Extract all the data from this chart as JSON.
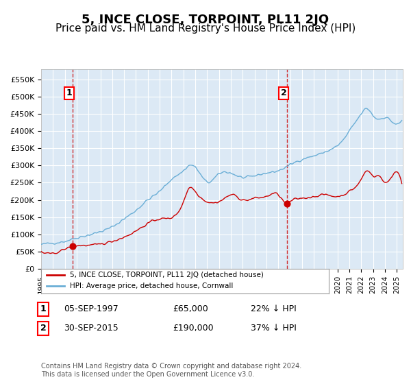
{
  "title": "5, INCE CLOSE, TORPOINT, PL11 2JQ",
  "subtitle": "Price paid vs. HM Land Registry's House Price Index (HPI)",
  "title_fontsize": 13,
  "subtitle_fontsize": 11,
  "background_color": "#dce9f5",
  "plot_bg_color": "#dce9f5",
  "hpi_color": "#6aaed6",
  "price_color": "#cc0000",
  "marker_color": "#cc0000",
  "dashed_line_color": "#cc0000",
  "ylim": [
    0,
    580000
  ],
  "yticks": [
    0,
    50000,
    100000,
    150000,
    200000,
    250000,
    300000,
    350000,
    400000,
    450000,
    500000,
    550000
  ],
  "ylabel_format": "£{0}K",
  "sale1_date": "05-SEP-1997",
  "sale1_price": 65000,
  "sale1_label": "1",
  "sale1_x": 1997.67,
  "sale2_date": "30-SEP-2015",
  "sale2_price": 190000,
  "sale2_label": "2",
  "sale2_x": 2015.75,
  "legend_label_price": "5, INCE CLOSE, TORPOINT, PL11 2JQ (detached house)",
  "legend_label_hpi": "HPI: Average price, detached house, Cornwall",
  "table_row1": "1    05-SEP-1997    £65,000    22% ↓ HPI",
  "table_row2": "2    30-SEP-2015    £190,000    37% ↓ HPI",
  "footnote": "Contains HM Land Registry data © Crown copyright and database right 2024.\nThis data is licensed under the Open Government Licence v3.0.",
  "xmin": 1995.0,
  "xmax": 2025.5
}
